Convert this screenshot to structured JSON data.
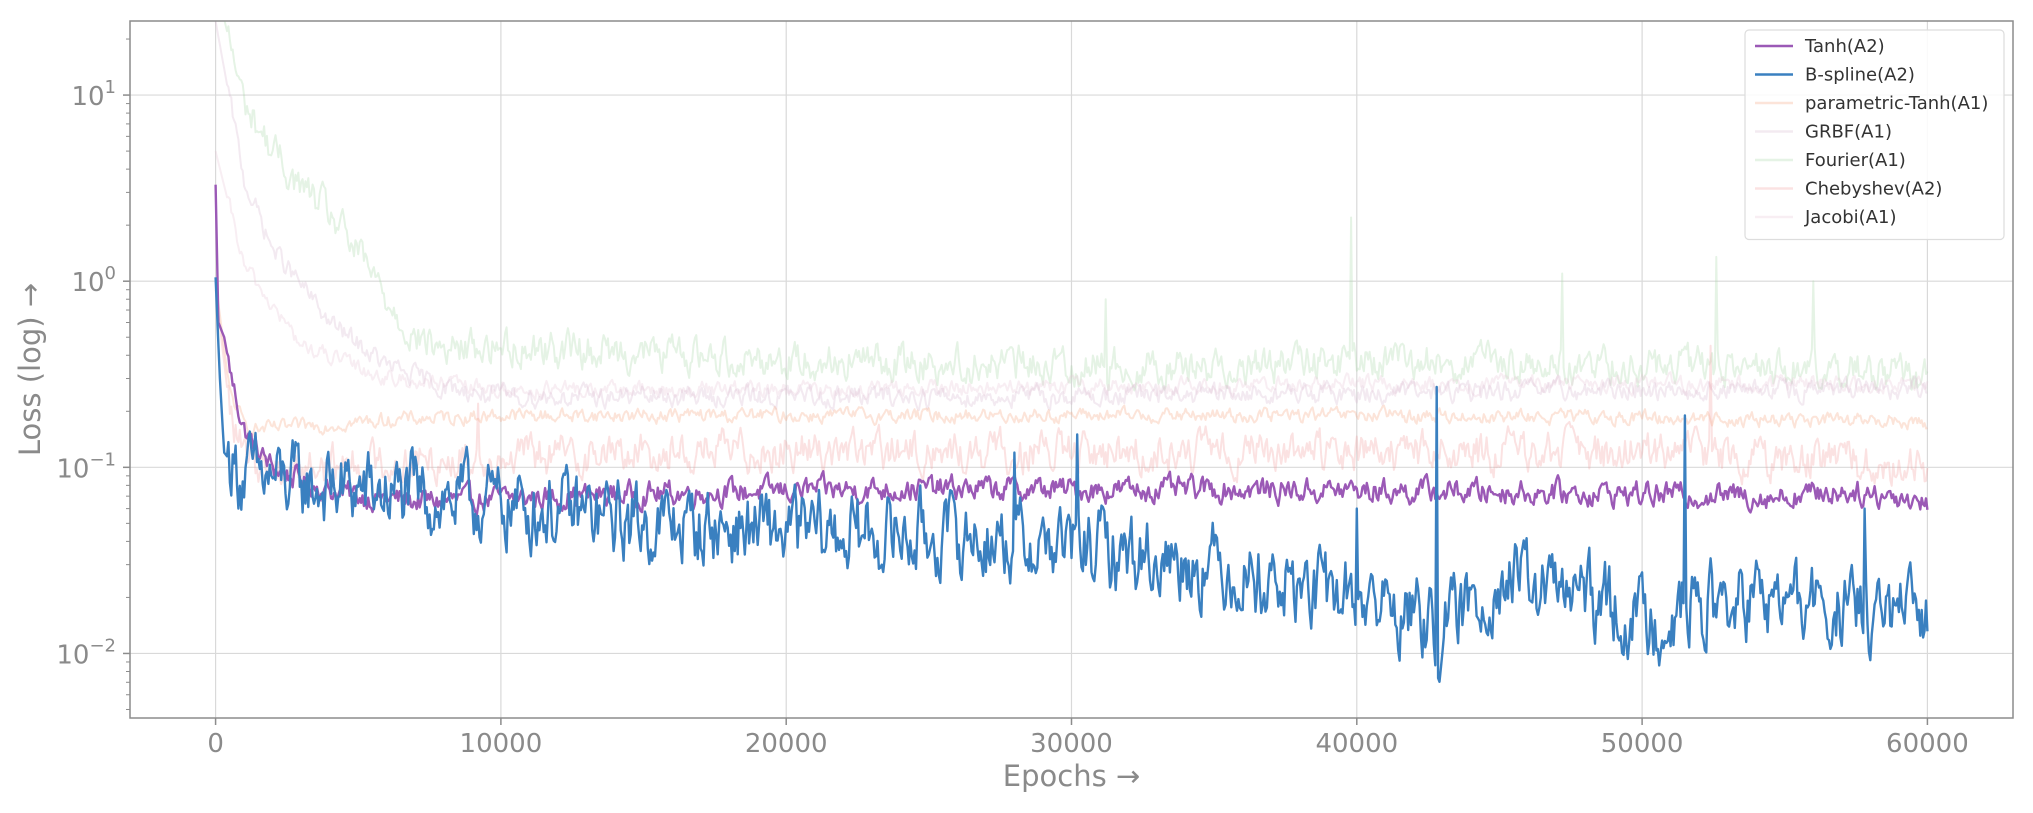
{
  "chart_data": {
    "type": "line",
    "title": "",
    "xlabel": "Epochs →",
    "ylabel": "Loss (log) →",
    "xlim": [
      -3000,
      63000
    ],
    "ylim": [
      0.0045,
      25
    ],
    "yscale": "log",
    "x_ticks": [
      0,
      10000,
      20000,
      30000,
      40000,
      50000,
      60000
    ],
    "x_tick_labels": [
      "0",
      "10000",
      "20000",
      "30000",
      "40000",
      "50000",
      "60000"
    ],
    "y_ticks": [
      0.01,
      0.1,
      1,
      10
    ],
    "y_tick_labels": [
      {
        "base": "10",
        "exp": "−2"
      },
      {
        "base": "10",
        "exp": "−1"
      },
      {
        "base": "10",
        "exp": "0"
      },
      {
        "base": "10",
        "exp": "1"
      }
    ],
    "grid": true,
    "legend_position": "top-right",
    "series": [
      {
        "name": "Tanh(A2)",
        "color": "#9b59b6",
        "alpha": 1.0,
        "x": [
          0,
          100,
          300,
          600,
          1000,
          1500,
          2000,
          3000,
          4000,
          5000,
          6000,
          7000,
          8000,
          10000,
          15000,
          20000,
          25000,
          30000,
          35000,
          40000,
          45000,
          50000,
          55000,
          57000,
          58000,
          59000,
          60000
        ],
        "y": [
          3.3,
          0.6,
          0.5,
          0.28,
          0.16,
          0.12,
          0.1,
          0.085,
          0.075,
          0.07,
          0.068,
          0.066,
          0.066,
          0.068,
          0.072,
          0.075,
          0.077,
          0.076,
          0.076,
          0.075,
          0.074,
          0.072,
          0.07,
          0.075,
          0.072,
          0.07,
          0.065
        ],
        "noise": 0.12,
        "spikes": []
      },
      {
        "name": "B-spline(A2)",
        "color": "#3a80c0",
        "alpha": 1.0,
        "x": [
          0,
          150,
          300,
          700,
          1000,
          2000,
          3000,
          5000,
          8000,
          10000,
          15000,
          20000,
          25000,
          30000,
          35000,
          38000,
          40000,
          42000,
          43000,
          45000,
          48000,
          50000,
          52000,
          55000,
          58000,
          60000
        ],
        "y": [
          1.05,
          0.3,
          0.12,
          0.1,
          0.09,
          0.085,
          0.08,
          0.075,
          0.068,
          0.063,
          0.05,
          0.045,
          0.043,
          0.038,
          0.03,
          0.022,
          0.02,
          0.016,
          0.013,
          0.025,
          0.02,
          0.015,
          0.018,
          0.019,
          0.016,
          0.015
        ],
        "noise": 0.38,
        "spikes": [
          [
            28000,
            0.12
          ],
          [
            30200,
            0.15
          ],
          [
            40000,
            0.06
          ],
          [
            42800,
            0.27
          ],
          [
            51500,
            0.19
          ],
          [
            57800,
            0.06
          ]
        ]
      },
      {
        "name": "parametric-Tanh(A1)",
        "color": "#f4a582",
        "alpha": 0.3,
        "x": [
          0,
          500,
          1000,
          1500,
          3000,
          6000,
          10000,
          20000,
          30000,
          40000,
          50000,
          55000,
          60000
        ],
        "y": [
          1.0,
          0.25,
          0.17,
          0.16,
          0.165,
          0.18,
          0.19,
          0.19,
          0.19,
          0.19,
          0.185,
          0.18,
          0.175
        ],
        "noise": 0.07,
        "spikes": []
      },
      {
        "name": "GRBF(A1)",
        "color": "#d8b8d0",
        "alpha": 0.3,
        "x": [
          0,
          1000,
          2000,
          4000,
          6000,
          8000,
          10000,
          20000,
          30000,
          40000,
          50000,
          60000
        ],
        "y": [
          25,
          3.5,
          1.5,
          0.6,
          0.35,
          0.27,
          0.24,
          0.24,
          0.24,
          0.25,
          0.26,
          0.26
        ],
        "noise": 0.1,
        "spikes": []
      },
      {
        "name": "Fourier(A1)",
        "color": "#a8d8a8",
        "alpha": 0.3,
        "x": [
          0,
          1000,
          2000,
          3000,
          4000,
          5000,
          6000,
          7000,
          8000,
          10000,
          20000,
          30000,
          35000,
          40000,
          45000,
          50000,
          55000,
          60000
        ],
        "y": [
          40,
          9,
          5,
          3.2,
          2.3,
          1.4,
          0.8,
          0.5,
          0.43,
          0.45,
          0.38,
          0.35,
          0.35,
          0.37,
          0.36,
          0.35,
          0.34,
          0.32
        ],
        "noise": 0.18,
        "spikes": [
          [
            31200,
            0.8
          ],
          [
            39800,
            2.2
          ],
          [
            47200,
            1.1
          ],
          [
            52600,
            1.35
          ],
          [
            56000,
            1.0
          ]
        ]
      },
      {
        "name": "Chebyshev(A2)",
        "color": "#f2a0a0",
        "alpha": 0.3,
        "x": [
          0,
          500,
          1000,
          2000,
          3000,
          5000,
          8000,
          10000,
          15000,
          20000,
          25000,
          30000,
          40000,
          50000,
          55000,
          60000
        ],
        "y": [
          0.9,
          0.2,
          0.11,
          0.1,
          0.1,
          0.105,
          0.11,
          0.115,
          0.12,
          0.125,
          0.12,
          0.12,
          0.12,
          0.12,
          0.11,
          0.1
        ],
        "noise": 0.2,
        "spikes": [
          [
            9200,
            0.22
          ],
          [
            52400,
            0.45
          ]
        ]
      },
      {
        "name": "Jacobi(A1)",
        "color": "#e8c8d8",
        "alpha": 0.3,
        "x": [
          0,
          1000,
          3000,
          6000,
          10000,
          20000,
          30000,
          40000,
          50000,
          60000
        ],
        "y": [
          5,
          1.2,
          0.45,
          0.3,
          0.26,
          0.26,
          0.27,
          0.28,
          0.28,
          0.28
        ],
        "noise": 0.08,
        "spikes": []
      }
    ]
  }
}
